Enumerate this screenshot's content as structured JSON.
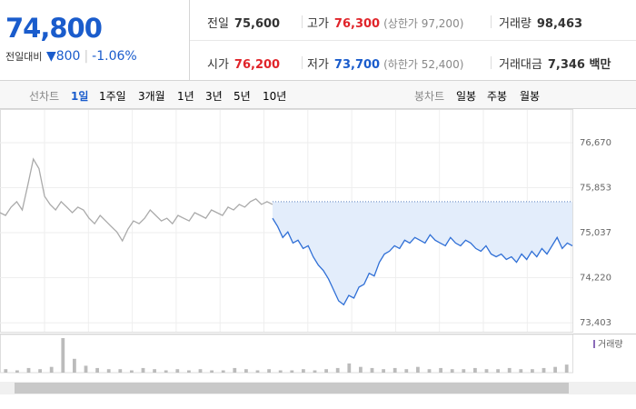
{
  "header": {
    "price": "74,800",
    "change_label": "전일대비",
    "change": "▼800",
    "change_rate": "-1.06%"
  },
  "stats": [
    {
      "label": "전일",
      "value": "75,600"
    },
    {
      "label": "고가",
      "value": "76,300",
      "note": "(상한가 97,200)"
    },
    {
      "label": "거래량",
      "value": "98,463"
    },
    {
      "label": "시가",
      "value": "76,200"
    },
    {
      "label": "저가",
      "value": "73,700",
      "note": "(하한가 52,400)"
    },
    {
      "label": "거래대금",
      "value": "7,346 백만"
    }
  ],
  "line_tabs": {
    "label": "선차트",
    "items": [
      "1일",
      "1주일",
      "3개월",
      "1년",
      "3년",
      "5년",
      "10년"
    ]
  },
  "candle_tabs": {
    "label": "봉차트",
    "items": [
      "일봉",
      "주봉",
      "월봉"
    ]
  },
  "chart_data": {
    "type": "line",
    "ylim": [
      73240,
      77230
    ],
    "yticks": [
      {
        "value": 76670,
        "label": "76,670"
      },
      {
        "value": 75853,
        "label": "75,853"
      },
      {
        "value": 75037,
        "label": "75,037"
      },
      {
        "value": 74220,
        "label": "74,220"
      },
      {
        "value": 73403,
        "label": "73,403"
      }
    ],
    "reference": 75600,
    "grid": true,
    "series": [
      {
        "color": "#aaaaaa",
        "values": [
          75400,
          75350,
          75500,
          75600,
          75450,
          75900,
          76373,
          76200,
          75700,
          75550,
          75450,
          75600,
          75500,
          75400,
          75500,
          75450,
          75300,
          75200,
          75350,
          75250,
          75150,
          75050,
          74888,
          75100,
          75250,
          75200,
          75300,
          75450,
          75350,
          75250,
          75300,
          75200,
          75350,
          75300,
          75250,
          75400,
          75350,
          75300,
          75450,
          75400,
          75350,
          75500,
          75450,
          75550,
          75500,
          75600,
          75650,
          75550,
          75600,
          75550
        ]
      },
      {
        "color": "#2f6fd6",
        "values": [
          75300,
          75150,
          74950,
          75050,
          74850,
          74900,
          74750,
          74800,
          74600,
          74450,
          74350,
          74200,
          74000,
          73800,
          73730,
          73900,
          73850,
          74050,
          74100,
          74300,
          74250,
          74500,
          74650,
          74700,
          74800,
          74750,
          74900,
          74850,
          74950,
          74900,
          74850,
          75000,
          74900,
          74850,
          74800,
          74950,
          74850,
          74800,
          74900,
          74850,
          74750,
          74700,
          74800,
          74650,
          74600,
          74650,
          74550,
          74600,
          74500,
          74650,
          74550,
          74700,
          74600,
          74750,
          74650,
          74800,
          74950,
          74750,
          74850,
          74800
        ]
      }
    ],
    "volume_label": "거래량",
    "volume": [
      3,
      2,
      4,
      3,
      5,
      30,
      12,
      6,
      4,
      3,
      3,
      2,
      4,
      3,
      2,
      3,
      2,
      3,
      2,
      2,
      4,
      3,
      2,
      3,
      2,
      2,
      3,
      2,
      3,
      4,
      8,
      5,
      4,
      3,
      4,
      3,
      5,
      3,
      4,
      3,
      3,
      4,
      3,
      3,
      4,
      3,
      3,
      4,
      5,
      7
    ]
  }
}
